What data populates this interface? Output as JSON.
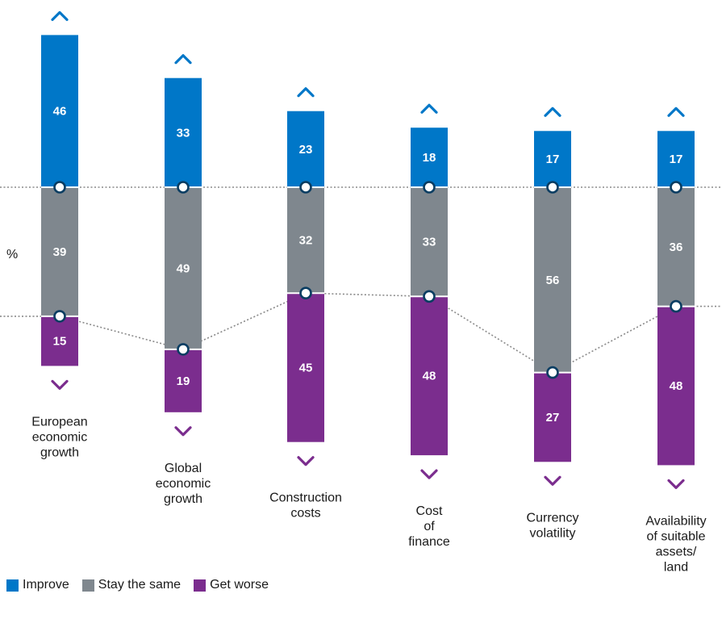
{
  "chart_data": {
    "type": "bar",
    "stacked": true,
    "unit_label": "%",
    "categories": [
      [
        "European",
        "economic",
        "growth"
      ],
      [
        "Global",
        "economic",
        "growth"
      ],
      [
        "Construction",
        "costs"
      ],
      [
        "Cost",
        "of",
        "finance"
      ],
      [
        "Currency",
        "volatility"
      ],
      [
        "Availability",
        "of suitable",
        "assets/",
        "land"
      ]
    ],
    "series": [
      {
        "name": "Improve",
        "color": "#0077c8",
        "values": [
          46,
          33,
          23,
          18,
          17,
          17
        ]
      },
      {
        "name": "Stay the same",
        "color": "#7f878e",
        "values": [
          39,
          49,
          32,
          33,
          56,
          36
        ]
      },
      {
        "name": "Get worse",
        "color": "#7b2d8e",
        "values": [
          15,
          19,
          45,
          48,
          27,
          48
        ]
      }
    ],
    "improve_icon": "chevron-up-icon",
    "worse_icon": "chevron-down-icon",
    "legend_position": "bottom-left"
  },
  "legend": {
    "improve": "Improve",
    "same": "Stay the same",
    "worse": "Get worse"
  }
}
